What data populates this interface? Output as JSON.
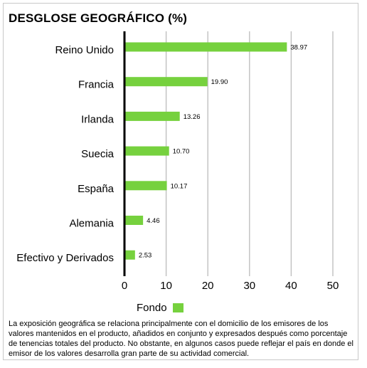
{
  "title": "DESGLOSE GEOGRÁFICO (%)",
  "legend": {
    "label": "Fondo",
    "color": "#76d13e"
  },
  "footnote": "La exposición geográfica se relaciona principalmente con el domicilio de los emisores de los valores mantenidos en el producto, añadidos en conjunto y expresados después como porcentaje de tenencias totales del producto. No obstante, en algunos casos puede reflejar el país en donde el emisor de los valores desarrolla gran parte de su actividad comercial.",
  "chart_data": {
    "type": "bar",
    "orientation": "horizontal",
    "title": "DESGLOSE GEOGRÁFICO (%)",
    "categories": [
      "Reino Unido",
      "Francia",
      "Irlanda",
      "Suecia",
      "España",
      "Alemania",
      "Efectivo y Derivados"
    ],
    "values": [
      38.97,
      19.9,
      13.26,
      10.7,
      10.17,
      4.46,
      2.53
    ],
    "value_labels": [
      "38.97",
      "19.90",
      "13.26",
      "10.70",
      "10.17",
      "4.46",
      "2.53"
    ],
    "series": [
      {
        "name": "Fondo",
        "values": [
          38.97,
          19.9,
          13.26,
          10.7,
          10.17,
          4.46,
          2.53
        ]
      }
    ],
    "xlim": [
      0,
      50
    ],
    "xticks": [
      0,
      10,
      20,
      30,
      40,
      50
    ],
    "grid": true,
    "legend_position": "bottom",
    "bar_color": "#76d13e",
    "grid_color": "#c0c0c0"
  }
}
